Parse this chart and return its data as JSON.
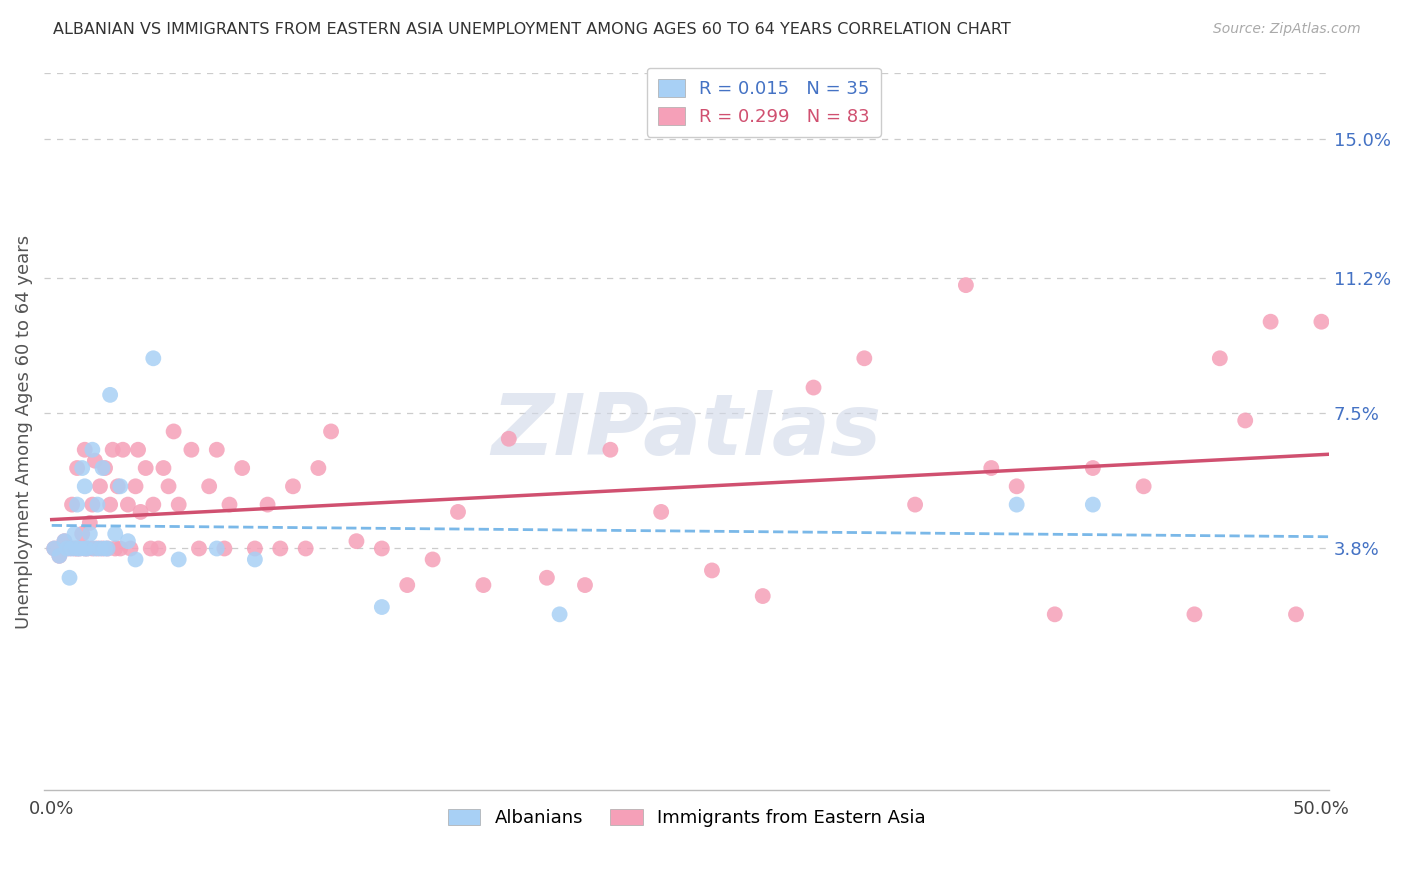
{
  "title": "ALBANIAN VS IMMIGRANTS FROM EASTERN ASIA UNEMPLOYMENT AMONG AGES 60 TO 64 YEARS CORRELATION CHART",
  "source": "Source: ZipAtlas.com",
  "ylabel": "Unemployment Among Ages 60 to 64 years",
  "xlim": [
    -0.003,
    0.503
  ],
  "ylim": [
    -0.028,
    0.168
  ],
  "xtick_vals": [
    0.0,
    0.1,
    0.2,
    0.3,
    0.4,
    0.5
  ],
  "xtick_labels": [
    "0.0%",
    "",
    "",
    "",
    "",
    "50.0%"
  ],
  "ytick_vals": [
    0.038,
    0.075,
    0.112,
    0.15
  ],
  "ytick_labels": [
    "3.8%",
    "7.5%",
    "11.2%",
    "15.0%"
  ],
  "albanian_color": "#A8D0F5",
  "albanian_trend_color": "#7AB8E8",
  "eastern_asia_color": "#F5A0B8",
  "eastern_asia_trend_color": "#D05070",
  "albanian_R": 0.015,
  "albanian_N": 35,
  "eastern_asia_R": 0.299,
  "eastern_asia_N": 83,
  "legend_label_1": "Albanians",
  "legend_label_2": "Immigrants from Eastern Asia",
  "watermark": "ZIPatlas",
  "albanian_x": [
    0.001,
    0.003,
    0.005,
    0.006,
    0.007,
    0.008,
    0.009,
    0.01,
    0.01,
    0.011,
    0.012,
    0.013,
    0.013,
    0.014,
    0.015,
    0.016,
    0.017,
    0.018,
    0.019,
    0.02,
    0.021,
    0.022,
    0.023,
    0.025,
    0.027,
    0.03,
    0.033,
    0.04,
    0.05,
    0.065,
    0.08,
    0.13,
    0.2,
    0.38,
    0.41
  ],
  "albanian_y": [
    0.038,
    0.036,
    0.04,
    0.038,
    0.03,
    0.038,
    0.042,
    0.05,
    0.038,
    0.038,
    0.06,
    0.038,
    0.055,
    0.038,
    0.042,
    0.065,
    0.038,
    0.05,
    0.038,
    0.06,
    0.038,
    0.038,
    0.08,
    0.042,
    0.055,
    0.04,
    0.035,
    0.09,
    0.035,
    0.038,
    0.035,
    0.022,
    0.02,
    0.05,
    0.05
  ],
  "eastern_x": [
    0.001,
    0.003,
    0.005,
    0.007,
    0.008,
    0.009,
    0.01,
    0.01,
    0.011,
    0.012,
    0.013,
    0.013,
    0.014,
    0.015,
    0.016,
    0.016,
    0.017,
    0.018,
    0.019,
    0.02,
    0.021,
    0.022,
    0.023,
    0.024,
    0.025,
    0.026,
    0.027,
    0.028,
    0.03,
    0.031,
    0.033,
    0.034,
    0.035,
    0.037,
    0.039,
    0.04,
    0.042,
    0.044,
    0.046,
    0.048,
    0.05,
    0.055,
    0.058,
    0.062,
    0.065,
    0.068,
    0.07,
    0.075,
    0.08,
    0.085,
    0.09,
    0.095,
    0.1,
    0.105,
    0.11,
    0.12,
    0.13,
    0.14,
    0.15,
    0.16,
    0.17,
    0.18,
    0.195,
    0.21,
    0.22,
    0.24,
    0.26,
    0.28,
    0.3,
    0.32,
    0.34,
    0.36,
    0.37,
    0.38,
    0.395,
    0.41,
    0.43,
    0.45,
    0.46,
    0.47,
    0.48,
    0.49,
    0.5
  ],
  "eastern_y": [
    0.038,
    0.036,
    0.04,
    0.038,
    0.05,
    0.038,
    0.038,
    0.06,
    0.038,
    0.042,
    0.038,
    0.065,
    0.038,
    0.045,
    0.038,
    0.05,
    0.062,
    0.038,
    0.055,
    0.038,
    0.06,
    0.038,
    0.05,
    0.065,
    0.038,
    0.055,
    0.038,
    0.065,
    0.05,
    0.038,
    0.055,
    0.065,
    0.048,
    0.06,
    0.038,
    0.05,
    0.038,
    0.06,
    0.055,
    0.07,
    0.05,
    0.065,
    0.038,
    0.055,
    0.065,
    0.038,
    0.05,
    0.06,
    0.038,
    0.05,
    0.038,
    0.055,
    0.038,
    0.06,
    0.07,
    0.04,
    0.038,
    0.028,
    0.035,
    0.048,
    0.028,
    0.068,
    0.03,
    0.028,
    0.065,
    0.048,
    0.032,
    0.025,
    0.082,
    0.09,
    0.05,
    0.11,
    0.06,
    0.055,
    0.02,
    0.06,
    0.055,
    0.02,
    0.09,
    0.073,
    0.1,
    0.02,
    0.1
  ]
}
